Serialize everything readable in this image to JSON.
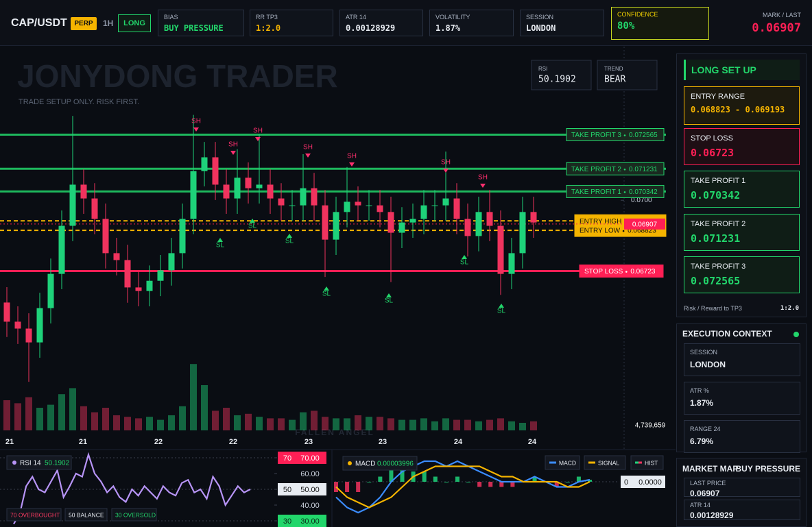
{
  "header": {
    "symbol": "CAP/USDT",
    "badge": "PERP",
    "timeframe": "1H",
    "direction": "LONG",
    "mark_label": "MARK / LAST",
    "mark": "0.06907"
  },
  "stats": [
    {
      "label": "BIAS",
      "value": "BUY PRESSURE"
    },
    {
      "label": "RR TP3",
      "value": "1:2.0"
    },
    {
      "label": "ATR 14",
      "value": "0.00128929"
    },
    {
      "label": "VOLATILITY",
      "value": "1.87%"
    },
    {
      "label": "SESSION",
      "value": "LONDON"
    },
    {
      "label": "CONFIDENCE",
      "value": "80%"
    }
  ],
  "chart_data": [
    {
      "type": "candlestick",
      "title": "JONYDONG TRADER",
      "subtitle": "TRADE SETUP ONLY. RISK FIRST.",
      "watermark": "FALLEN ANGEL",
      "info": [
        {
          "label": "RSI",
          "value": "50.1902"
        },
        {
          "label": "TREND",
          "value": "BEAR"
        }
      ],
      "x_labels": [
        "21",
        "21",
        "22",
        "22",
        "23",
        "23",
        "24",
        "24"
      ],
      "open": [
        0.066,
        0.06525,
        0.06498,
        0.06444,
        0.06578,
        0.06712,
        0.069,
        0.07061,
        0.07007,
        0.06927,
        0.06793,
        0.06766,
        0.06659,
        0.06645,
        0.06685,
        0.06726,
        0.06793,
        0.06927,
        0.07114,
        0.07168,
        0.07061,
        0.07007,
        0.07088,
        0.07047,
        0.07061,
        0.07007,
        0.0698,
        0.0698,
        0.07047,
        0.0698,
        0.06846,
        0.06954,
        0.06994,
        0.0698,
        0.0698,
        0.06954,
        0.06873,
        0.06913,
        0.06927,
        0.0698,
        0.0698,
        0.07007,
        0.06927,
        0.0686,
        0.06954,
        0.069,
        0.06712,
        0.06793,
        0.06954
      ],
      "high": [
        0.0666,
        0.06585,
        0.06558,
        0.06638,
        0.06772,
        0.0696,
        0.0733,
        0.07121,
        0.07067,
        0.06987,
        0.06853,
        0.06826,
        0.06719,
        0.06745,
        0.06786,
        0.06853,
        0.06987,
        0.07334,
        0.07228,
        0.07228,
        0.07121,
        0.072,
        0.07148,
        0.0726,
        0.07121,
        0.07067,
        0.0704,
        0.0718,
        0.07107,
        0.0704,
        0.07014,
        0.0713,
        0.07054,
        0.0704,
        0.0704,
        0.07014,
        0.06973,
        0.06987,
        0.0704,
        0.0704,
        0.0719,
        0.07067,
        0.06987,
        0.07014,
        0.0704,
        0.0696,
        0.06853,
        0.07014,
        0.07014
      ],
      "low": [
        0.06465,
        0.06438,
        0.0629,
        0.06384,
        0.06518,
        0.06652,
        0.0684,
        0.06947,
        0.06867,
        0.06733,
        0.06706,
        0.06599,
        0.06585,
        0.06585,
        0.06625,
        0.06666,
        0.06733,
        0.06867,
        0.07054,
        0.07001,
        0.06947,
        0.06947,
        0.06987,
        0.06987,
        0.06947,
        0.0692,
        0.0692,
        0.0692,
        0.0692,
        0.067,
        0.06786,
        0.06894,
        0.0692,
        0.0692,
        0.06894,
        0.0668,
        0.06813,
        0.06853,
        0.06867,
        0.0692,
        0.0692,
        0.06867,
        0.0678,
        0.068,
        0.0684,
        0.0663,
        0.06652,
        0.06733,
        0.06853
      ],
      "close": [
        0.06525,
        0.06498,
        0.06444,
        0.06578,
        0.06712,
        0.069,
        0.07061,
        0.07007,
        0.06927,
        0.06793,
        0.06766,
        0.06659,
        0.06645,
        0.06685,
        0.06726,
        0.06793,
        0.06927,
        0.07114,
        0.07168,
        0.07061,
        0.07007,
        0.07088,
        0.07047,
        0.07061,
        0.07007,
        0.0698,
        0.0698,
        0.07047,
        0.0698,
        0.06846,
        0.06954,
        0.06994,
        0.0698,
        0.0698,
        0.06954,
        0.06873,
        0.06913,
        0.06927,
        0.0698,
        0.0698,
        0.07007,
        0.06927,
        0.0686,
        0.06954,
        0.069,
        0.06712,
        0.06793,
        0.06954,
        0.06913
      ],
      "up_color": "#1ed27a",
      "down_color": "#f0335e",
      "ylim": [
        0.0625,
        0.0755
      ],
      "yticks": [
        {
          "value": 0.07,
          "label": "0.0700"
        }
      ],
      "levels": [
        {
          "label": "TAKE PROFIT 3",
          "value": 0.072565,
          "color": "#22d66b"
        },
        {
          "label": "TAKE PROFIT 2",
          "value": 0.071231,
          "color": "#22d66b"
        },
        {
          "label": "TAKE PROFIT 1",
          "value": 0.070342,
          "color": "#22d66b"
        },
        {
          "label": "ENTRY HIGH",
          "value": 0.069193,
          "color": "#f5b400"
        },
        {
          "label": "ENTRY LOW",
          "value": 0.068823,
          "color": "#f5b400"
        },
        {
          "label": "STOP LOSS",
          "value": 0.06723,
          "color": "#ff1f55"
        }
      ],
      "last": 0.06907,
      "last_color": "#ff1f55",
      "pivots": [
        "SH",
        "SH",
        "SH",
        "SH",
        "SH",
        "SH",
        "SH",
        "SL",
        "SL",
        "SL",
        "SL",
        "SL",
        "SL",
        "SL"
      ],
      "volume": [
        2000000,
        1800000,
        2200000,
        1500000,
        1700000,
        2400000,
        2800000,
        1600000,
        1200000,
        1500000,
        1000000,
        900000,
        800000,
        900000,
        700000,
        1000000,
        1600000,
        4400000,
        3000000,
        1300000,
        1500000,
        1000000,
        1100000,
        900000,
        800000,
        800000,
        700000,
        1200000,
        1300000,
        900000,
        800000,
        800000,
        1000000,
        900000,
        900000,
        800000,
        700000,
        700000,
        800000,
        600000,
        800000,
        700000,
        700000,
        600000,
        700000,
        800000,
        600000,
        500000,
        600000
      ],
      "vlim": [
        0,
        5000000
      ],
      "volume_label": "4,739,659"
    },
    {
      "type": "line",
      "title": "RSI 14",
      "value": "50.1902",
      "color": "#b794f6",
      "values": [
        28,
        35,
        52,
        58,
        50,
        48,
        55,
        62,
        45,
        52,
        60,
        58,
        72,
        60,
        55,
        48,
        52,
        45,
        42,
        50,
        46,
        52,
        48,
        44,
        52,
        48,
        46,
        54,
        56,
        48,
        50,
        44,
        58,
        52,
        40,
        46,
        52,
        48,
        50
      ],
      "ylim": [
        25,
        75
      ],
      "yticks": [
        {
          "value": 70,
          "label": "70.00"
        },
        {
          "value": 60,
          "label": "60.00"
        },
        {
          "value": 50,
          "label": "50.00"
        },
        {
          "value": 40,
          "label": "40.00"
        },
        {
          "value": 30,
          "label": "30.00"
        }
      ],
      "levels": [
        {
          "value": 70,
          "label": "70",
          "color": "#ff1f55"
        },
        {
          "value": 50,
          "label": "50",
          "color": "#e8ecf2"
        },
        {
          "value": 30,
          "label": "30",
          "color": "#22d66b"
        }
      ],
      "legend": [
        "70 OVERBOUGHT",
        "50 BALANCE",
        "30 OVERSOLD"
      ]
    },
    {
      "type": "macd",
      "title": "MACD",
      "value": "0.00003996",
      "series": [
        {
          "name": "MACD",
          "color": "#3b8cff",
          "values": [
            -0.0003,
            -0.0005,
            -0.0006,
            -0.0005,
            -0.0003,
            0,
            0.0002,
            0.0003,
            0.0004,
            0.0004,
            0.0003,
            0.0004,
            0.0003,
            0.0002,
            0.0001,
            0,
            0,
            0,
            0.0001,
            0,
            -0.0001,
            -0.0001,
            0,
            4e-05
          ]
        },
        {
          "name": "SIGNAL",
          "color": "#f5b400",
          "values": [
            -0.0001,
            -0.0003,
            -0.0004,
            -0.0005,
            -0.0004,
            -0.0003,
            -0.0001,
            0.0001,
            0.0002,
            0.0003,
            0.0003,
            0.0003,
            0.0003,
            0.0003,
            0.0002,
            0.0001,
            0.0001,
            0,
            0,
            0,
            0,
            -0.0001,
            -0.0001,
            0
          ]
        },
        {
          "name": "HIST",
          "color": "#1ed27a",
          "down_color": "#f0335e",
          "values": [
            -0.0002,
            -0.0002,
            -0.0002,
            0,
            0.0001,
            0.0003,
            0.0003,
            0.0002,
            0.0002,
            0.0001,
            0,
            0.0001,
            0,
            -0.0001,
            -0.0001,
            -0.0001,
            -0.0001,
            0,
            0.0001,
            0,
            -0.0001,
            0,
            0.0001,
            4e-05
          ]
        }
      ],
      "ylim": [
        -0.0008,
        0.0008
      ],
      "yticks": [
        {
          "value": 0,
          "label": "0.0000"
        }
      ],
      "zero_label": "0"
    }
  ],
  "setup": {
    "title": "LONG SET UP",
    "cards": [
      {
        "label": "ENTRY RANGE",
        "value": "0.068823 - 0.069193"
      },
      {
        "label": "STOP LOSS",
        "value": "0.06723"
      },
      {
        "label": "TAKE PROFIT 1",
        "value": "0.070342"
      },
      {
        "label": "TAKE PROFIT 2",
        "value": "0.071231"
      },
      {
        "label": "TAKE PROFIT 3",
        "value": "0.072565"
      }
    ],
    "rr_label": "Risk / Reward to TP3",
    "rr": "1:2.0"
  },
  "context": {
    "title": "EXECUTION CONTEXT",
    "items": [
      {
        "label": "SESSION",
        "value": "LONDON"
      },
      {
        "label": "ATR %",
        "value": "1.87%"
      },
      {
        "label": "RANGE 24",
        "value": "6.79%"
      }
    ]
  },
  "market_map": {
    "title": "MARKET MAP",
    "bias": "BUY PRESSURE",
    "items": [
      {
        "label": "LAST PRICE",
        "value": "0.06907"
      },
      {
        "label": "ATR 14",
        "value": "0.00128929"
      }
    ]
  }
}
